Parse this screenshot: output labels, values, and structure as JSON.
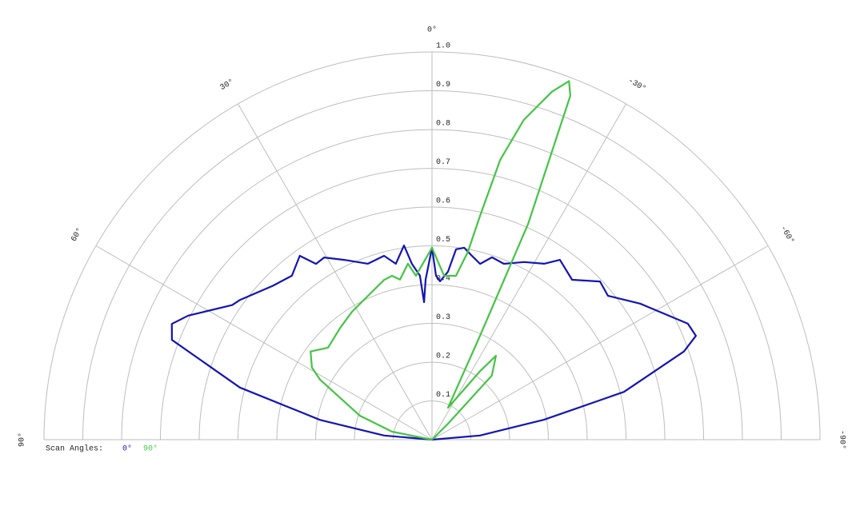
{
  "chart_data": {
    "type": "polar",
    "thetalim": [
      90,
      -90
    ],
    "thetaticks": [
      {
        "value": 90,
        "label": "90°"
      },
      {
        "value": 60,
        "label": "60°"
      },
      {
        "value": 30,
        "label": "30°"
      },
      {
        "value": 0,
        "label": "0°"
      },
      {
        "value": -30,
        "label": "-30°"
      },
      {
        "value": -60,
        "label": "-60°"
      },
      {
        "value": -90,
        "label": "-90°"
      }
    ],
    "rlim": [
      0,
      1
    ],
    "rticks": [
      0.1,
      0.2,
      0.3,
      0.4,
      0.5,
      0.6,
      0.7,
      0.8,
      0.9,
      {
        "value": 1,
        "label": "1.0"
      }
    ],
    "grid": true,
    "legend_title": "Scan Angles:",
    "series": [
      {
        "name": "0°",
        "color": "#1414b4",
        "theta": [
          90,
          85,
          80,
          74.8,
          69,
          66,
          63,
          56,
          53.9,
          46,
          40.5,
          35.7,
          33.4,
          30.6,
          26,
          20,
          14.6,
          11.6,
          8.2,
          6.5,
          4.2,
          3.3,
          2.3,
          0,
          -1.4,
          -2.9,
          -5.4,
          -7.2,
          -9.5,
          -12.3,
          -15.3,
          -18.2,
          -22.2,
          -27.4,
          -32.5,
          -35.4,
          -41.2,
          -46.7,
          -50.7,
          -56.8,
          -65.6,
          -68.5,
          -70.7,
          -76,
          -79.9,
          -85,
          -90
        ],
        "values": [
          0,
          0.124,
          0.293,
          0.513,
          0.718,
          0.734,
          0.705,
          0.621,
          0.612,
          0.571,
          0.556,
          0.584,
          0.543,
          0.546,
          0.516,
          0.483,
          0.49,
          0.463,
          0.506,
          0.456,
          0.424,
          0.355,
          0.413,
          0.495,
          0.423,
          0.409,
          0.435,
          0.495,
          0.502,
          0.485,
          0.47,
          0.495,
          0.49,
          0.516,
          0.538,
          0.569,
          0.548,
          0.595,
          0.586,
          0.641,
          0.724,
          0.731,
          0.688,
          0.51,
          0.293,
          0.124,
          0
        ]
      },
      {
        "name": "90°",
        "color": "#44c444",
        "theta": [
          90,
          78.7,
          71.6,
          61.8,
          59,
          54,
          48.5,
          39.4,
          32,
          24,
          16.7,
          13.7,
          11.3,
          7.8,
          5.6,
          0,
          -4.2,
          -8.3,
          -10.8,
          -12.1,
          -13.7,
          -16,
          -19,
          -20.9,
          -21.9,
          -24,
          -24.8,
          -26.6,
          -35,
          -37.3,
          -43,
          -45,
          -90
        ],
        "values": [
          0,
          0.105,
          0.196,
          0.327,
          0.361,
          0.387,
          0.358,
          0.373,
          0.389,
          0.406,
          0.43,
          0.435,
          0.421,
          0.458,
          0.425,
          0.495,
          0.424,
          0.427,
          0.493,
          0.59,
          0.743,
          0.858,
          0.949,
          0.99,
          0.956,
          0.609,
          0.295,
          0.092,
          0.215,
          0.272,
          0.226,
          0.058,
          0
        ]
      }
    ]
  }
}
